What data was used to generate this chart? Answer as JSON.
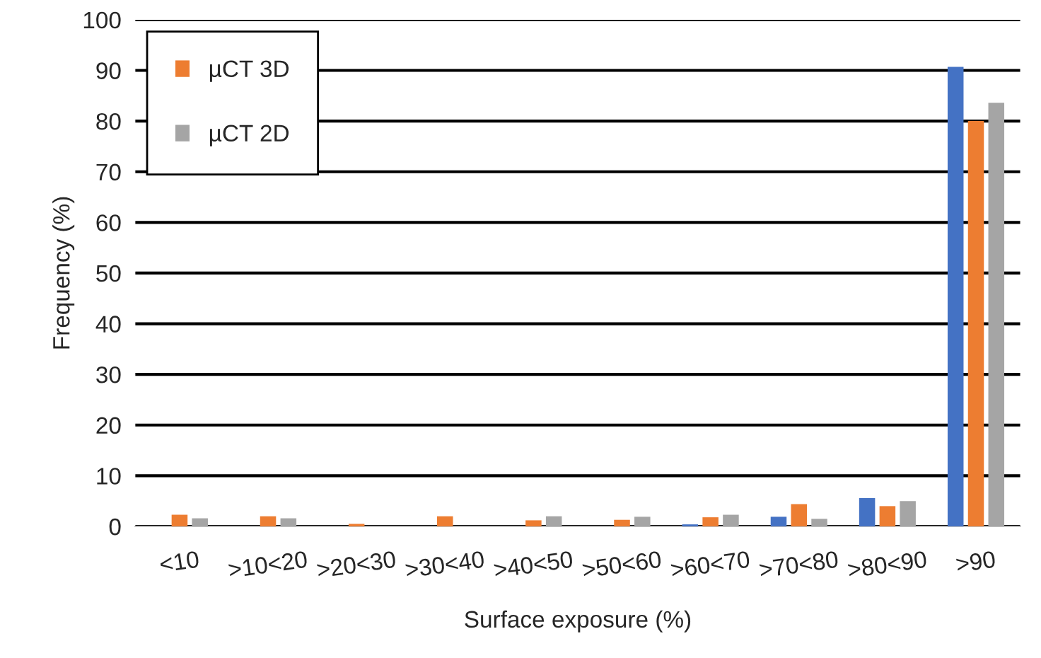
{
  "chart_data": {
    "type": "bar",
    "xlabel": "Surface exposure (%)",
    "ylabel": "Frequency (%)",
    "categories": [
      "<10",
      ">10<20",
      ">20<30",
      ">30<40",
      ">40<50",
      ">50<60",
      ">60<70",
      ">70<80",
      ">80<90",
      ">90"
    ],
    "series": [
      {
        "color": "#4472c4",
        "values": [
          null,
          null,
          null,
          null,
          null,
          null,
          0.4,
          1.9,
          5.6,
          90.7
        ]
      },
      {
        "name": "µCT 3D",
        "color": "#ed7d31",
        "values": [
          2.3,
          2.0,
          0.5,
          2.0,
          1.2,
          1.3,
          1.8,
          4.4,
          4.0,
          80
        ]
      },
      {
        "name": "µCT 2D",
        "color": "#a5a5a5",
        "values": [
          1.6,
          1.6,
          null,
          null,
          2.0,
          1.9,
          2.3,
          1.5,
          5.0,
          83.6
        ]
      }
    ],
    "ylim": [
      0,
      100
    ],
    "yticks": [
      0,
      10,
      20,
      30,
      40,
      50,
      60,
      70,
      80,
      90,
      100
    ],
    "grid": "y",
    "legend": "top left"
  }
}
